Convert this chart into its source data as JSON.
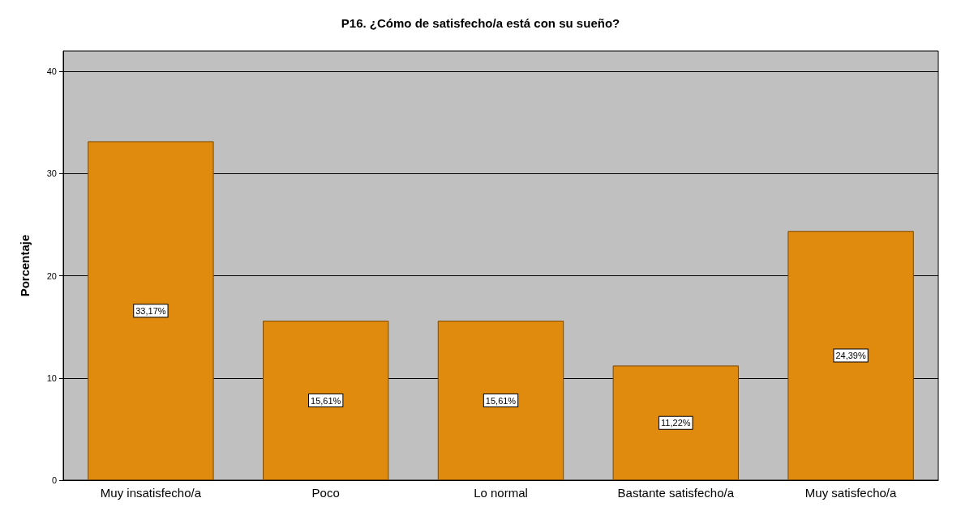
{
  "chart_data": {
    "type": "bar",
    "title": "P16. ¿Cómo de satisfecho/a está con su sueño?",
    "ylabel": "Porcentaje",
    "categories": [
      "Muy insatisfecho/a",
      "Poco",
      "Lo normal",
      "Bastante satisfecho/a",
      "Muy satisfecho/a"
    ],
    "values": [
      33.17,
      15.61,
      15.61,
      11.22,
      24.39
    ],
    "value_labels": [
      "33,17%",
      "15,61%",
      "15,61%",
      "11,22%",
      "24,39%"
    ],
    "color": "#e08a0e",
    "ylim": [
      0,
      42
    ],
    "yticks": [
      0,
      10,
      20,
      30,
      40
    ],
    "grid": "y"
  }
}
